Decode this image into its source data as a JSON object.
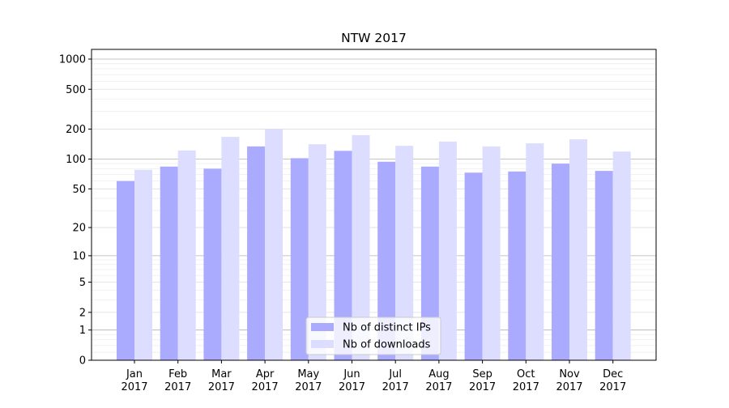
{
  "chart_data": {
    "type": "bar",
    "title": "NTW 2017",
    "xlabel": "",
    "ylabel": "",
    "yscale": "symlog (log10(y+1))",
    "ylim": [
      0,
      1250
    ],
    "yticks": [
      0,
      1,
      2,
      5,
      10,
      20,
      50,
      100,
      200,
      500,
      1000
    ],
    "categories": [
      "Jan\n2017",
      "Feb\n2017",
      "Mar\n2017",
      "Apr\n2017",
      "May\n2017",
      "Jun\n2017",
      "Jul\n2017",
      "Aug\n2017",
      "Sep\n2017",
      "Oct\n2017",
      "Nov\n2017",
      "Dec\n2017"
    ],
    "series": [
      {
        "name": "Nb of distinct IPs",
        "color": "#aaaaff",
        "values": [
          60,
          84,
          80,
          134,
          102,
          121,
          94,
          84,
          73,
          75,
          90,
          76
        ]
      },
      {
        "name": "Nb of downloads",
        "color": "#ddddff",
        "values": [
          78,
          122,
          167,
          200,
          141,
          174,
          136,
          150,
          134,
          144,
          158,
          119
        ]
      }
    ],
    "grid": true,
    "legend": "bottom-center"
  }
}
